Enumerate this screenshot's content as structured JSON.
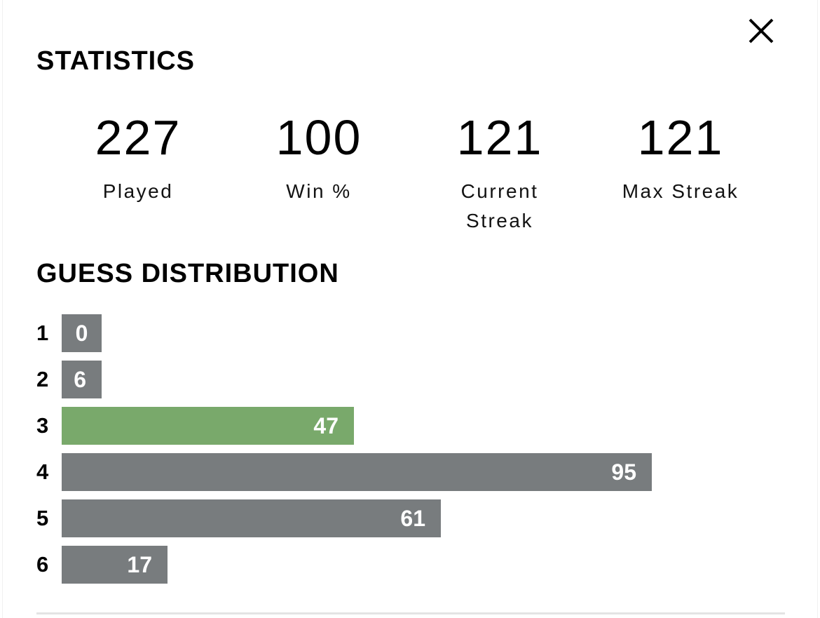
{
  "statistics_title": "STATISTICS",
  "stats": [
    {
      "value": "227",
      "label": "Played"
    },
    {
      "value": "100",
      "label": "Win %"
    },
    {
      "value": "121",
      "label": "Current Streak"
    },
    {
      "value": "121",
      "label": "Max Streak"
    }
  ],
  "distribution_title": "GUESS DISTRIBUTION",
  "distribution": [
    {
      "guess": "1",
      "count": 0,
      "highlight": false
    },
    {
      "guess": "2",
      "count": 6,
      "highlight": false
    },
    {
      "guess": "3",
      "count": 47,
      "highlight": true
    },
    {
      "guess": "4",
      "count": 95,
      "highlight": false
    },
    {
      "guess": "5",
      "count": 61,
      "highlight": false
    },
    {
      "guess": "6",
      "count": 17,
      "highlight": false
    }
  ],
  "colors": {
    "bar_default": "#787c7e",
    "bar_highlight": "#79a96b"
  },
  "icons": {
    "close": "close-icon"
  }
}
